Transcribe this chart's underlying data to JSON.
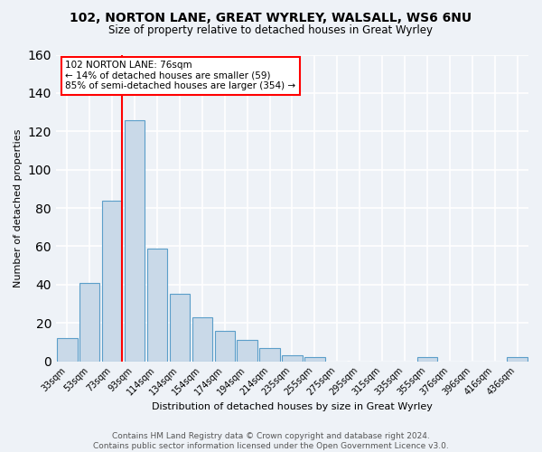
{
  "title": "102, NORTON LANE, GREAT WYRLEY, WALSALL, WS6 6NU",
  "subtitle": "Size of property relative to detached houses in Great Wyrley",
  "xlabel": "Distribution of detached houses by size in Great Wyrley",
  "ylabel": "Number of detached properties",
  "footer_line1": "Contains HM Land Registry data © Crown copyright and database right 2024.",
  "footer_line2": "Contains public sector information licensed under the Open Government Licence v3.0.",
  "categories": [
    "33sqm",
    "53sqm",
    "73sqm",
    "93sqm",
    "114sqm",
    "134sqm",
    "154sqm",
    "174sqm",
    "194sqm",
    "214sqm",
    "235sqm",
    "255sqm",
    "275sqm",
    "295sqm",
    "315sqm",
    "335sqm",
    "355sqm",
    "376sqm",
    "396sqm",
    "416sqm",
    "436sqm"
  ],
  "values": [
    12,
    41,
    84,
    126,
    59,
    35,
    23,
    16,
    11,
    7,
    3,
    2,
    0,
    0,
    0,
    0,
    2,
    0,
    0,
    0,
    2
  ],
  "bar_color": "#c9d9e8",
  "bar_edgecolor": "#5b9ec9",
  "vline_color": "red",
  "annotation_title": "102 NORTON LANE: 76sqm",
  "annotation_line1": "← 14% of detached houses are smaller (59)",
  "annotation_line2": "85% of semi-detached houses are larger (354) →",
  "ylim": [
    0,
    160
  ],
  "yticks": [
    0,
    20,
    40,
    60,
    80,
    100,
    120,
    140,
    160
  ],
  "background_color": "#eef2f7",
  "plot_background": "#eef2f7",
  "grid_color": "white"
}
